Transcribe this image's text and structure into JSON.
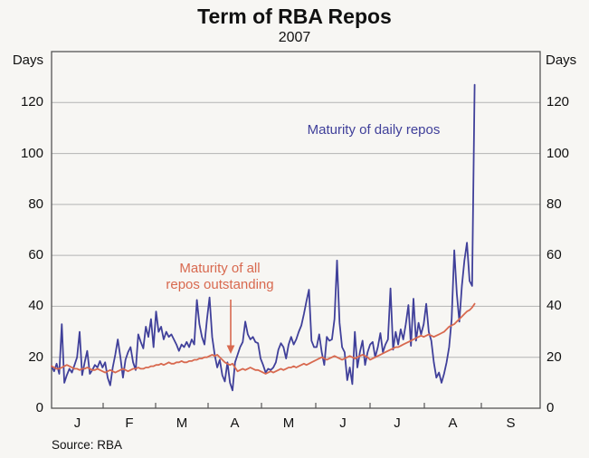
{
  "title": "Term of RBA Repos",
  "subtitle": "2007",
  "source": "Source: RBA",
  "axes": {
    "unit_left": "Days",
    "unit_right": "Days",
    "y_ticks": [
      0,
      20,
      40,
      60,
      80,
      100,
      120
    ],
    "y_max": 140,
    "month_labels": [
      "J",
      "F",
      "M",
      "A",
      "M",
      "J",
      "J",
      "A",
      "S"
    ]
  },
  "annotations": {
    "daily_label": "Maturity of daily repos",
    "outstanding_label": "Maturity of all\nrepos outstanding"
  },
  "colors": {
    "daily_line": "#40409a",
    "outstanding_line": "#d8694f",
    "grid": "#b3b3b3",
    "frame": "#555555",
    "background": "#f7f6f3",
    "text": "#111111"
  },
  "chart_data": {
    "type": "line",
    "title": "Term of RBA Repos",
    "subtitle": "2007",
    "ylabel": "Days",
    "ylim": [
      0,
      140
    ],
    "grid": true,
    "x_months": [
      "Jan",
      "Feb",
      "Mar",
      "Apr",
      "May",
      "Jun",
      "Jul",
      "Aug",
      "Sep"
    ],
    "x_note": "daily observations Jan 2007 to late Aug 2007, x-axis drawn to end of Sep",
    "series": [
      {
        "name": "Maturity of daily repos",
        "color": "#40409a",
        "values": [
          16.5,
          14.5,
          17.5,
          13.5,
          33,
          10,
          13,
          15.5,
          14,
          17,
          20,
          30,
          13,
          18,
          22.5,
          13.5,
          15,
          17,
          16,
          18.5,
          16,
          18,
          12,
          9,
          16,
          21,
          27,
          20,
          12,
          19,
          22,
          24,
          18,
          15,
          29,
          26,
          23.5,
          32,
          28,
          35,
          24,
          38,
          30,
          32,
          27,
          30,
          28,
          29,
          27,
          25,
          22.5,
          25,
          24,
          26,
          24,
          27,
          25,
          42.5,
          33,
          28,
          25,
          35,
          43.5,
          28,
          21,
          16,
          19,
          13,
          10.5,
          18,
          10,
          7,
          18,
          21,
          24,
          26,
          34,
          29,
          27,
          28,
          26,
          25.5,
          19.5,
          17,
          14,
          15.5,
          15,
          16,
          18,
          23,
          25.5,
          24,
          19.5,
          25,
          28,
          25,
          27,
          30,
          32.5,
          37,
          42,
          46.5,
          26.5,
          24,
          24,
          29,
          22,
          17,
          28,
          26.5,
          27,
          35,
          58,
          33.5,
          24,
          22,
          11,
          16,
          9.5,
          30,
          16,
          22,
          26.5,
          17,
          22,
          25,
          26,
          20,
          24,
          29.5,
          22,
          25,
          27,
          47,
          23,
          30,
          25,
          31,
          27,
          33,
          40.5,
          24.5,
          43,
          26.5,
          33.5,
          29,
          33,
          41,
          30,
          26.5,
          18,
          12,
          14,
          10,
          13.5,
          18,
          24,
          35,
          62,
          45,
          34,
          48,
          58,
          65,
          50,
          48,
          127
        ]
      },
      {
        "name": "Maturity of all repos outstanding",
        "color": "#d8694f",
        "values": [
          16.5,
          16,
          15.5,
          15.5,
          16,
          16.5,
          17,
          16.5,
          16,
          15.5,
          15.5,
          15,
          15.5,
          15.5,
          16,
          15.5,
          15,
          15,
          15.5,
          15,
          14.5,
          14,
          14.5,
          15,
          14.5,
          14,
          14.5,
          15,
          15.5,
          15,
          14.5,
          15,
          15.5,
          15.5,
          16,
          15.5,
          15.5,
          16,
          16,
          16.5,
          16.5,
          17,
          17,
          17.5,
          17,
          17.5,
          18,
          17.5,
          17.5,
          18,
          18,
          18.5,
          18,
          18,
          18.5,
          18.5,
          19,
          19,
          19.5,
          19.5,
          20,
          20,
          20.5,
          21,
          20.5,
          21,
          20,
          19,
          18,
          17.5,
          17,
          17.5,
          16,
          14.5,
          15,
          15.5,
          15,
          15.5,
          16,
          15.5,
          15,
          15,
          14.5,
          14,
          13.5,
          14,
          14.5,
          14,
          14.5,
          15,
          15.5,
          15,
          15.5,
          16,
          16,
          16.5,
          16,
          16.5,
          17,
          17.5,
          17,
          17.5,
          18,
          18.5,
          19,
          19.5,
          20,
          19.5,
          19,
          19.5,
          20,
          20.5,
          20,
          19.5,
          19,
          19.5,
          20,
          20.5,
          20,
          19.5,
          20,
          20.5,
          21,
          20.5,
          20,
          19,
          19.5,
          20,
          20.5,
          21,
          21.5,
          22,
          22.5,
          23,
          23.5,
          24,
          24,
          24.5,
          25,
          25.5,
          26,
          26.5,
          27,
          27.5,
          28,
          28.5,
          28,
          28.5,
          29,
          28.5,
          28,
          28.5,
          29,
          29.5,
          30,
          31,
          32,
          32.5,
          33,
          34,
          35,
          36,
          37,
          38,
          38.5,
          39.5,
          41
        ]
      }
    ]
  }
}
